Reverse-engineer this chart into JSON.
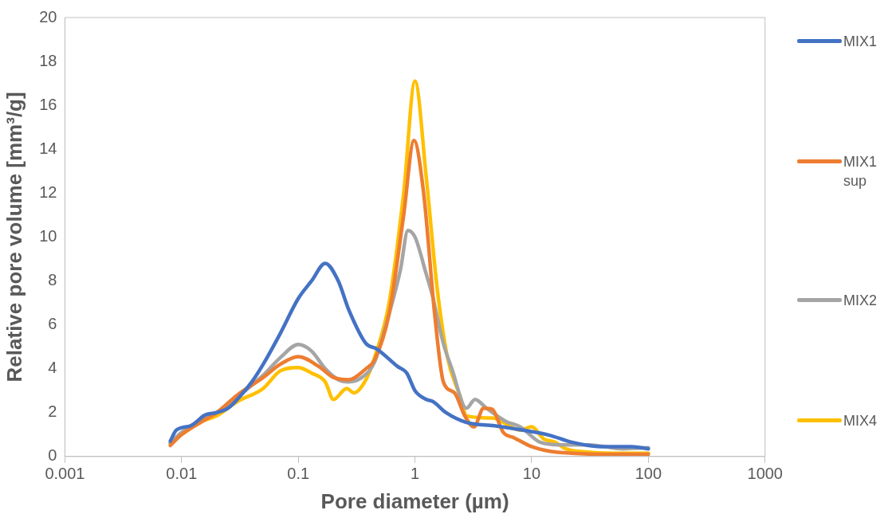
{
  "chart_data": {
    "type": "line",
    "xlabel": "Pore diameter (µm)",
    "ylabel": "Relative pore volume [mm³/g]",
    "log": "x",
    "xlim": [
      0.001,
      1000
    ],
    "xticks": [
      0.001,
      0.01,
      0.1,
      1,
      10,
      100,
      1000
    ],
    "ylim": [
      0,
      20
    ],
    "yticks": [
      0,
      2,
      4,
      6,
      8,
      10,
      12,
      14,
      16,
      18,
      20
    ],
    "grid": false,
    "legend": "right",
    "marker": "none",
    "line_style": "solid",
    "series": [
      {
        "name": "MIX1",
        "color": "#4472c4",
        "x": [
          0.008,
          0.009,
          0.012,
          0.016,
          0.02,
          0.025,
          0.03,
          0.04,
          0.05,
          0.07,
          0.1,
          0.13,
          0.17,
          0.22,
          0.27,
          0.38,
          0.47,
          0.71,
          0.85,
          1.0,
          1.25,
          1.43,
          1.84,
          2.76,
          4.8,
          8.4,
          14,
          22,
          39,
          72,
          100
        ],
        "values": [
          0.7,
          1.2,
          1.4,
          1.9,
          2.0,
          2.2,
          2.6,
          3.4,
          4.2,
          5.6,
          7.2,
          8.0,
          8.8,
          8.0,
          6.7,
          5.15,
          4.9,
          4.1,
          3.8,
          3.0,
          2.6,
          2.5,
          2.0,
          1.55,
          1.4,
          1.2,
          0.98,
          0.65,
          0.45,
          0.45,
          0.35
        ]
      },
      {
        "name": "MIX1 sup",
        "color": "#ed7d31",
        "x": [
          0.008,
          0.01,
          0.015,
          0.02,
          0.03,
          0.05,
          0.07,
          0.1,
          0.15,
          0.2,
          0.27,
          0.38,
          0.45,
          0.6,
          0.8,
          0.98,
          1.18,
          1.48,
          1.75,
          2.18,
          2.67,
          3.2,
          3.87,
          4.6,
          5.7,
          7.1,
          10,
          14,
          22,
          50,
          100
        ],
        "values": [
          0.5,
          1.0,
          1.6,
          2.0,
          2.8,
          3.6,
          4.2,
          4.55,
          4.1,
          3.6,
          3.5,
          4.0,
          4.4,
          6.5,
          11,
          14.4,
          12.1,
          6.4,
          3.4,
          2.9,
          1.85,
          1.35,
          2.2,
          2.15,
          1.1,
          0.85,
          0.45,
          0.25,
          0.15,
          0.1,
          0.1
        ]
      },
      {
        "name": "MIX2",
        "color": "#a5a5a5",
        "x": [
          0.008,
          0.01,
          0.015,
          0.02,
          0.03,
          0.05,
          0.07,
          0.1,
          0.13,
          0.17,
          0.22,
          0.27,
          0.35,
          0.45,
          0.6,
          0.75,
          0.87,
          1.0,
          1.25,
          1.4,
          1.75,
          2.07,
          2.76,
          3.27,
          4.1,
          6.0,
          8.0,
          11.8,
          17.8,
          31,
          61,
          100
        ],
        "values": [
          0.6,
          1.1,
          1.7,
          2.0,
          2.7,
          3.7,
          4.5,
          5.1,
          4.8,
          4.0,
          3.5,
          3.4,
          3.6,
          4.3,
          6.5,
          8.5,
          10.3,
          10.0,
          8.3,
          7.4,
          5.15,
          4.0,
          2.2,
          2.6,
          2.2,
          1.6,
          1.35,
          0.65,
          0.53,
          0.53,
          0.35,
          0.4
        ]
      },
      {
        "name": "MIX4",
        "color": "#ffc000",
        "x": [
          0.008,
          0.01,
          0.015,
          0.02,
          0.03,
          0.05,
          0.07,
          0.1,
          0.13,
          0.17,
          0.2,
          0.26,
          0.3,
          0.38,
          0.45,
          0.6,
          0.8,
          1.0,
          1.25,
          1.55,
          1.9,
          2.45,
          2.76,
          4.6,
          8,
          10,
          12.7,
          15.8,
          19.6,
          30,
          50,
          100
        ],
        "values": [
          0.6,
          1.0,
          1.6,
          1.85,
          2.5,
          3.1,
          3.9,
          4.05,
          3.8,
          3.4,
          2.6,
          3.1,
          2.9,
          3.5,
          4.5,
          7,
          12,
          17.1,
          12.7,
          7.65,
          4.5,
          2.7,
          1.85,
          1.75,
          1.2,
          1.35,
          0.8,
          0.65,
          0.35,
          0.2,
          0.15,
          0.15
        ]
      }
    ]
  }
}
